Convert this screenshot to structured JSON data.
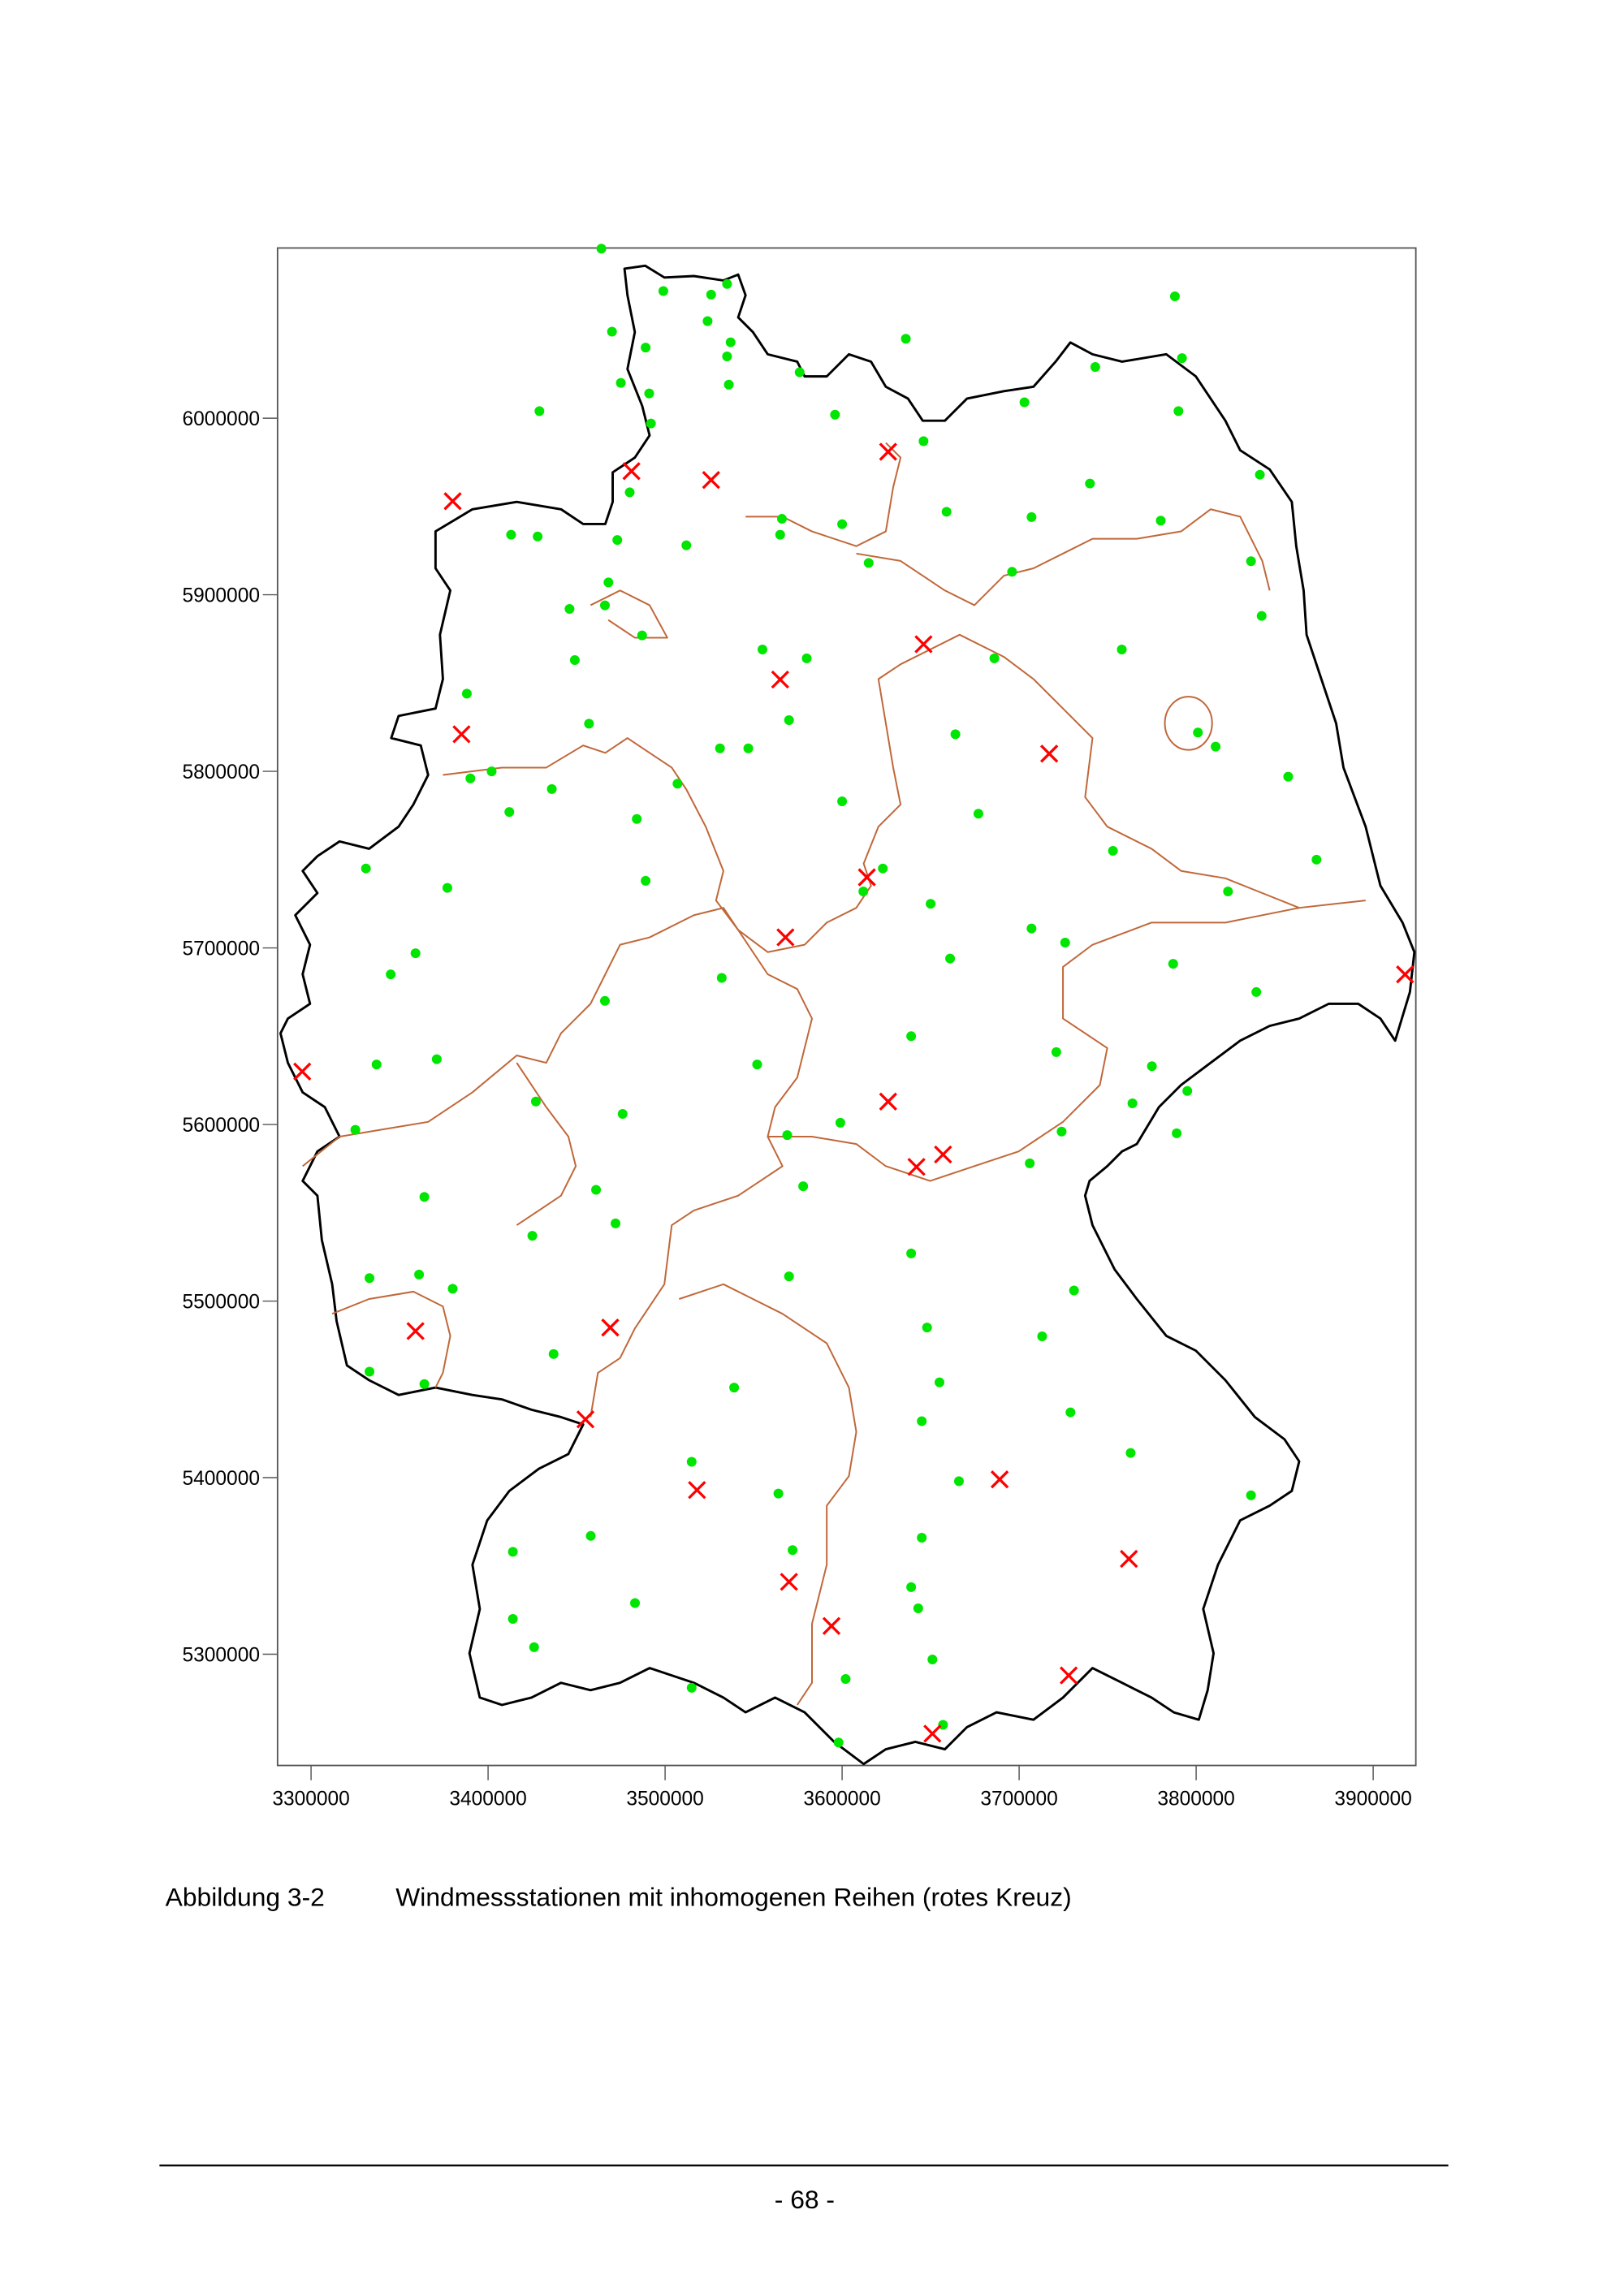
{
  "chart_data": {
    "type": "scatter",
    "title": "",
    "xlabel": "",
    "ylabel": "",
    "xlim": [
      3281000,
      3924000
    ],
    "ylim": [
      5237000,
      6096000
    ],
    "grid": false,
    "x_ticks": [
      "3300000",
      "3400000",
      "3500000",
      "3600000",
      "3700000",
      "3800000",
      "3900000"
    ],
    "y_ticks": [
      "6000000",
      "5900000",
      "5800000",
      "5700000",
      "5600000",
      "5500000",
      "5400000",
      "5300000"
    ],
    "x_tick_values": [
      3300000,
      3400000,
      3500000,
      3600000,
      3700000,
      3800000,
      3900000
    ],
    "y_tick_values": [
      6000000,
      5900000,
      5800000,
      5700000,
      5600000,
      5500000,
      5400000,
      5300000
    ],
    "series": [
      {
        "marker": "dot",
        "color": "#00e600",
        "points": [
          [
            3464000,
            6096000
          ],
          [
            3499000,
            6072000
          ],
          [
            3526000,
            6070000
          ],
          [
            3535000,
            6076000
          ],
          [
            3470000,
            6049000
          ],
          [
            3489000,
            6040000
          ],
          [
            3524000,
            6055000
          ],
          [
            3537000,
            6043000
          ],
          [
            3535000,
            6035000
          ],
          [
            3636000,
            6045000
          ],
          [
            3475000,
            6020000
          ],
          [
            3491000,
            6014000
          ],
          [
            3536000,
            6019000
          ],
          [
            3576000,
            6026000
          ],
          [
            3429000,
            6004000
          ],
          [
            3492000,
            5997000
          ],
          [
            3596000,
            6002000
          ],
          [
            3646000,
            5987000
          ],
          [
            3703000,
            6009000
          ],
          [
            3743000,
            6029000
          ],
          [
            3788000,
            6069000
          ],
          [
            3792000,
            6034000
          ],
          [
            3790000,
            6004000
          ],
          [
            3836000,
            5968000
          ],
          [
            3480000,
            5958000
          ],
          [
            3413000,
            5934000
          ],
          [
            3428000,
            5933000
          ],
          [
            3473000,
            5931000
          ],
          [
            3512000,
            5928000
          ],
          [
            3566000,
            5943000
          ],
          [
            3565000,
            5934000
          ],
          [
            3600000,
            5940000
          ],
          [
            3615000,
            5918000
          ],
          [
            3659000,
            5947000
          ],
          [
            3707000,
            5944000
          ],
          [
            3740000,
            5963000
          ],
          [
            3780000,
            5942000
          ],
          [
            3696000,
            5913000
          ],
          [
            3468000,
            5907000
          ],
          [
            3466000,
            5894000
          ],
          [
            3446000,
            5892000
          ],
          [
            3487000,
            5877000
          ],
          [
            3449000,
            5863000
          ],
          [
            3555000,
            5869000
          ],
          [
            3580000,
            5864000
          ],
          [
            3686000,
            5864000
          ],
          [
            3758000,
            5869000
          ],
          [
            3831000,
            5919000
          ],
          [
            3837000,
            5888000
          ],
          [
            3388000,
            5844000
          ],
          [
            3457000,
            5827000
          ],
          [
            3531000,
            5813000
          ],
          [
            3547000,
            5813000
          ],
          [
            3570000,
            5829000
          ],
          [
            3664000,
            5821000
          ],
          [
            3801000,
            5822000
          ],
          [
            3811000,
            5814000
          ],
          [
            3852000,
            5797000
          ],
          [
            3390000,
            5796000
          ],
          [
            3402000,
            5800000
          ],
          [
            3412000,
            5777000
          ],
          [
            3436000,
            5790000
          ],
          [
            3507000,
            5793000
          ],
          [
            3484000,
            5773000
          ],
          [
            3600000,
            5783000
          ],
          [
            3677000,
            5776000
          ],
          [
            3753000,
            5755000
          ],
          [
            3818000,
            5732000
          ],
          [
            3868000,
            5750000
          ],
          [
            3331000,
            5745000
          ],
          [
            3377000,
            5734000
          ],
          [
            3489000,
            5738000
          ],
          [
            3623000,
            5745000
          ],
          [
            3612000,
            5732000
          ],
          [
            3650000,
            5725000
          ],
          [
            3707000,
            5711000
          ],
          [
            3726000,
            5703000
          ],
          [
            3787000,
            5691000
          ],
          [
            3834000,
            5675000
          ],
          [
            3359000,
            5697000
          ],
          [
            3345000,
            5685000
          ],
          [
            3466000,
            5670000
          ],
          [
            3532000,
            5683000
          ],
          [
            3661000,
            5694000
          ],
          [
            3639000,
            5650000
          ],
          [
            3721000,
            5641000
          ],
          [
            3775000,
            5633000
          ],
          [
            3795000,
            5619000
          ],
          [
            3789000,
            5595000
          ],
          [
            3764000,
            5612000
          ],
          [
            3724000,
            5596000
          ],
          [
            3706000,
            5578000
          ],
          [
            3337000,
            5634000
          ],
          [
            3371000,
            5637000
          ],
          [
            3427000,
            5613000
          ],
          [
            3476000,
            5606000
          ],
          [
            3552000,
            5634000
          ],
          [
            3569000,
            5594000
          ],
          [
            3599000,
            5601000
          ],
          [
            3325000,
            5597000
          ],
          [
            3364000,
            5559000
          ],
          [
            3461000,
            5563000
          ],
          [
            3472000,
            5544000
          ],
          [
            3578000,
            5565000
          ],
          [
            3425000,
            5537000
          ],
          [
            3361000,
            5515000
          ],
          [
            3333000,
            5513000
          ],
          [
            3380000,
            5507000
          ],
          [
            3570000,
            5514000
          ],
          [
            3639000,
            5527000
          ],
          [
            3648000,
            5485000
          ],
          [
            3713000,
            5480000
          ],
          [
            3731000,
            5506000
          ],
          [
            3437000,
            5470000
          ],
          [
            3333000,
            5460000
          ],
          [
            3364000,
            5453000
          ],
          [
            3539000,
            5451000
          ],
          [
            3655000,
            5454000
          ],
          [
            3645000,
            5432000
          ],
          [
            3515000,
            5409000
          ],
          [
            3666000,
            5398000
          ],
          [
            3564000,
            5391000
          ],
          [
            3729000,
            5437000
          ],
          [
            3763000,
            5414000
          ],
          [
            3831000,
            5390000
          ],
          [
            3414000,
            5358000
          ],
          [
            3458000,
            5367000
          ],
          [
            3572000,
            5359000
          ],
          [
            3645000,
            5366000
          ],
          [
            3483000,
            5329000
          ],
          [
            3414000,
            5320000
          ],
          [
            3426000,
            5304000
          ],
          [
            3639000,
            5338000
          ],
          [
            3643000,
            5326000
          ],
          [
            3651000,
            5297000
          ],
          [
            3602000,
            5286000
          ],
          [
            3515000,
            5281000
          ],
          [
            3657000,
            5260000
          ],
          [
            3598000,
            5250000
          ]
        ]
      },
      {
        "marker": "cross",
        "color": "#ff0000",
        "points": [
          [
            3380000,
            5953000
          ],
          [
            3481000,
            5970000
          ],
          [
            3526000,
            5965000
          ],
          [
            3626000,
            5981000
          ],
          [
            3646000,
            5872000
          ],
          [
            3565000,
            5852000
          ],
          [
            3385000,
            5821000
          ],
          [
            3717000,
            5810000
          ],
          [
            3614000,
            5740000
          ],
          [
            3568000,
            5706000
          ],
          [
            3918000,
            5685000
          ],
          [
            3295000,
            5630000
          ],
          [
            3626000,
            5613000
          ],
          [
            3642000,
            5576000
          ],
          [
            3657000,
            5583000
          ],
          [
            3359000,
            5483000
          ],
          [
            3469000,
            5485000
          ],
          [
            3455000,
            5433000
          ],
          [
            3518000,
            5393000
          ],
          [
            3689000,
            5399000
          ],
          [
            3762000,
            5354000
          ],
          [
            3570000,
            5341000
          ],
          [
            3594000,
            5316000
          ],
          [
            3728000,
            5288000
          ],
          [
            3651000,
            5255000
          ]
        ]
      }
    ]
  },
  "caption": {
    "label": "Abbildung 3-2",
    "text": "Windmessstationen mit inhomogenen Reihen (rotes Kreuz)"
  },
  "footer": {
    "page_number": "- 68 -"
  }
}
